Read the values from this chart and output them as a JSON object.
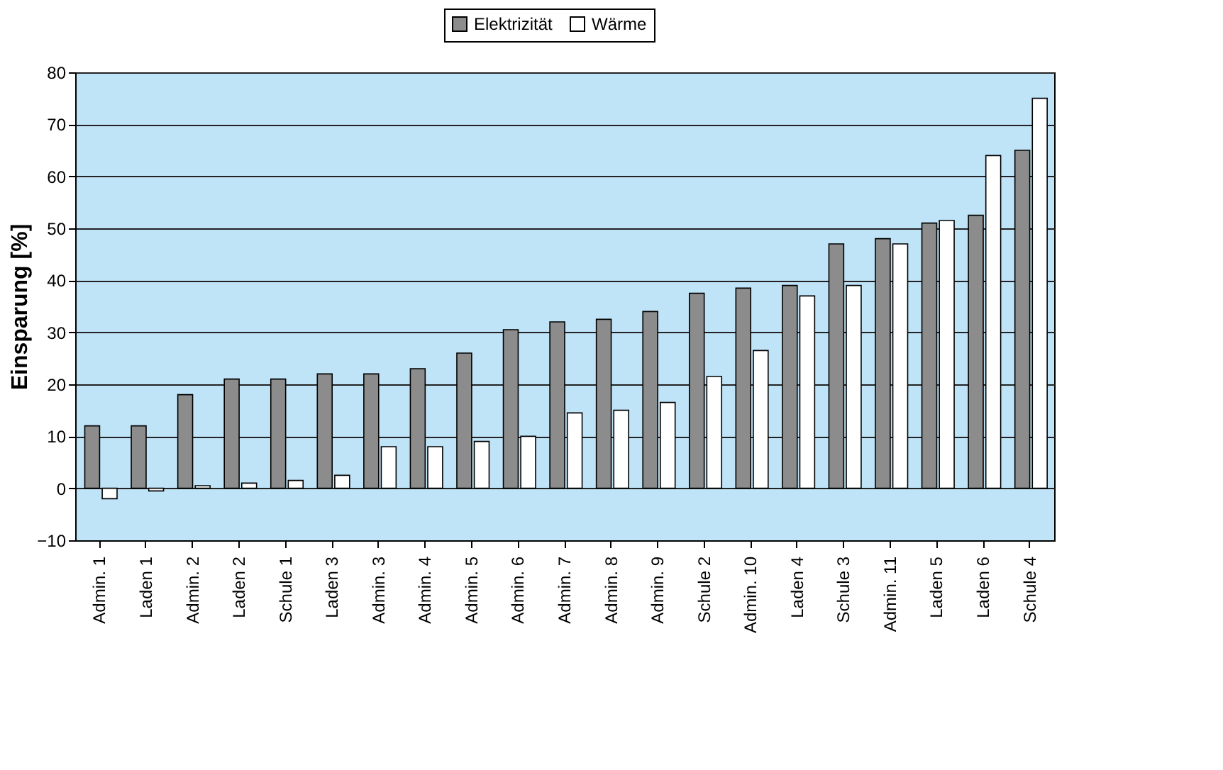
{
  "chart_data": {
    "type": "bar",
    "ylabel": "Einsparung [%]",
    "categories": [
      "Admin. 1",
      "Laden 1",
      "Admin. 2",
      "Laden 2",
      "Schule 1",
      "Laden 3",
      "Admin. 3",
      "Admin. 4",
      "Admin. 5",
      "Admin. 6",
      "Admin. 7",
      "Admin. 8",
      "Admin. 9",
      "Schule 2",
      "Admin. 10",
      "Laden 4",
      "Schule 3",
      "Admin. 11",
      "Laden 5",
      "Laden 6",
      "Schule 4"
    ],
    "series": [
      {
        "name": "Elektrizität",
        "color": "#8c8c8c",
        "values": [
          12,
          12,
          18,
          21,
          21,
          22,
          22,
          23,
          26,
          30.5,
          32,
          32.5,
          34,
          37.5,
          38.5,
          39,
          47,
          48,
          51,
          52.5,
          65
        ]
      },
      {
        "name": "Wärme",
        "color": "#ffffff",
        "values": [
          -2,
          -0.5,
          0.5,
          1,
          1.5,
          2.5,
          8,
          8,
          9,
          10,
          14.5,
          15,
          16.5,
          21.5,
          26.5,
          37,
          39,
          47,
          51.5,
          64,
          75
        ]
      }
    ],
    "ylim": [
      -10,
      80
    ],
    "yticks": [
      -10,
      0,
      10,
      20,
      30,
      40,
      50,
      60,
      70,
      80
    ],
    "grid": "y",
    "legend": "top"
  }
}
